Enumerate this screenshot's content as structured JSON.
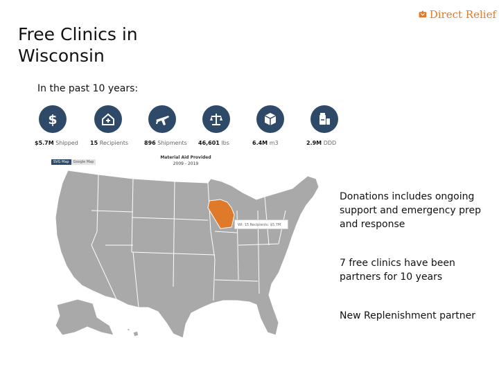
{
  "brand": {
    "name": "Direct Relief",
    "accent": "#e07a2b"
  },
  "slide": {
    "title_line1": "Free Clinics in",
    "title_line2": "Wisconsin",
    "subtitle": "In the past 10 years:"
  },
  "stats": [
    {
      "icon": "dollar-icon",
      "value": "$5.7M",
      "unit": "Shipped"
    },
    {
      "icon": "clinic-icon",
      "value": "15",
      "unit": "Recipients"
    },
    {
      "icon": "airplane-icon",
      "value": "896",
      "unit": "Shipments"
    },
    {
      "icon": "scale-icon",
      "value": "46,601",
      "unit": "lbs"
    },
    {
      "icon": "box-icon",
      "value": "6.4M",
      "unit": "m3"
    },
    {
      "icon": "medicine-icon",
      "value": "2.9M",
      "unit": "DDD"
    }
  ],
  "map": {
    "toggle": [
      "SVG Map",
      "Google Map"
    ],
    "title": "Material Aid Provided",
    "date_range": "2009 - 2019",
    "tooltip": "WI: 15 Recipients: $5.7M",
    "highlight_state": "Wisconsin",
    "highlight_color": "#e07a2b",
    "base_color": "#a9a9a9"
  },
  "bullets": [
    "Donations includes ongoing support and emergency prep and response",
    "7 free clinics have been partners for 10 years",
    "New Replenishment partner"
  ],
  "colors": {
    "icon_circle": "#2f4a68"
  }
}
